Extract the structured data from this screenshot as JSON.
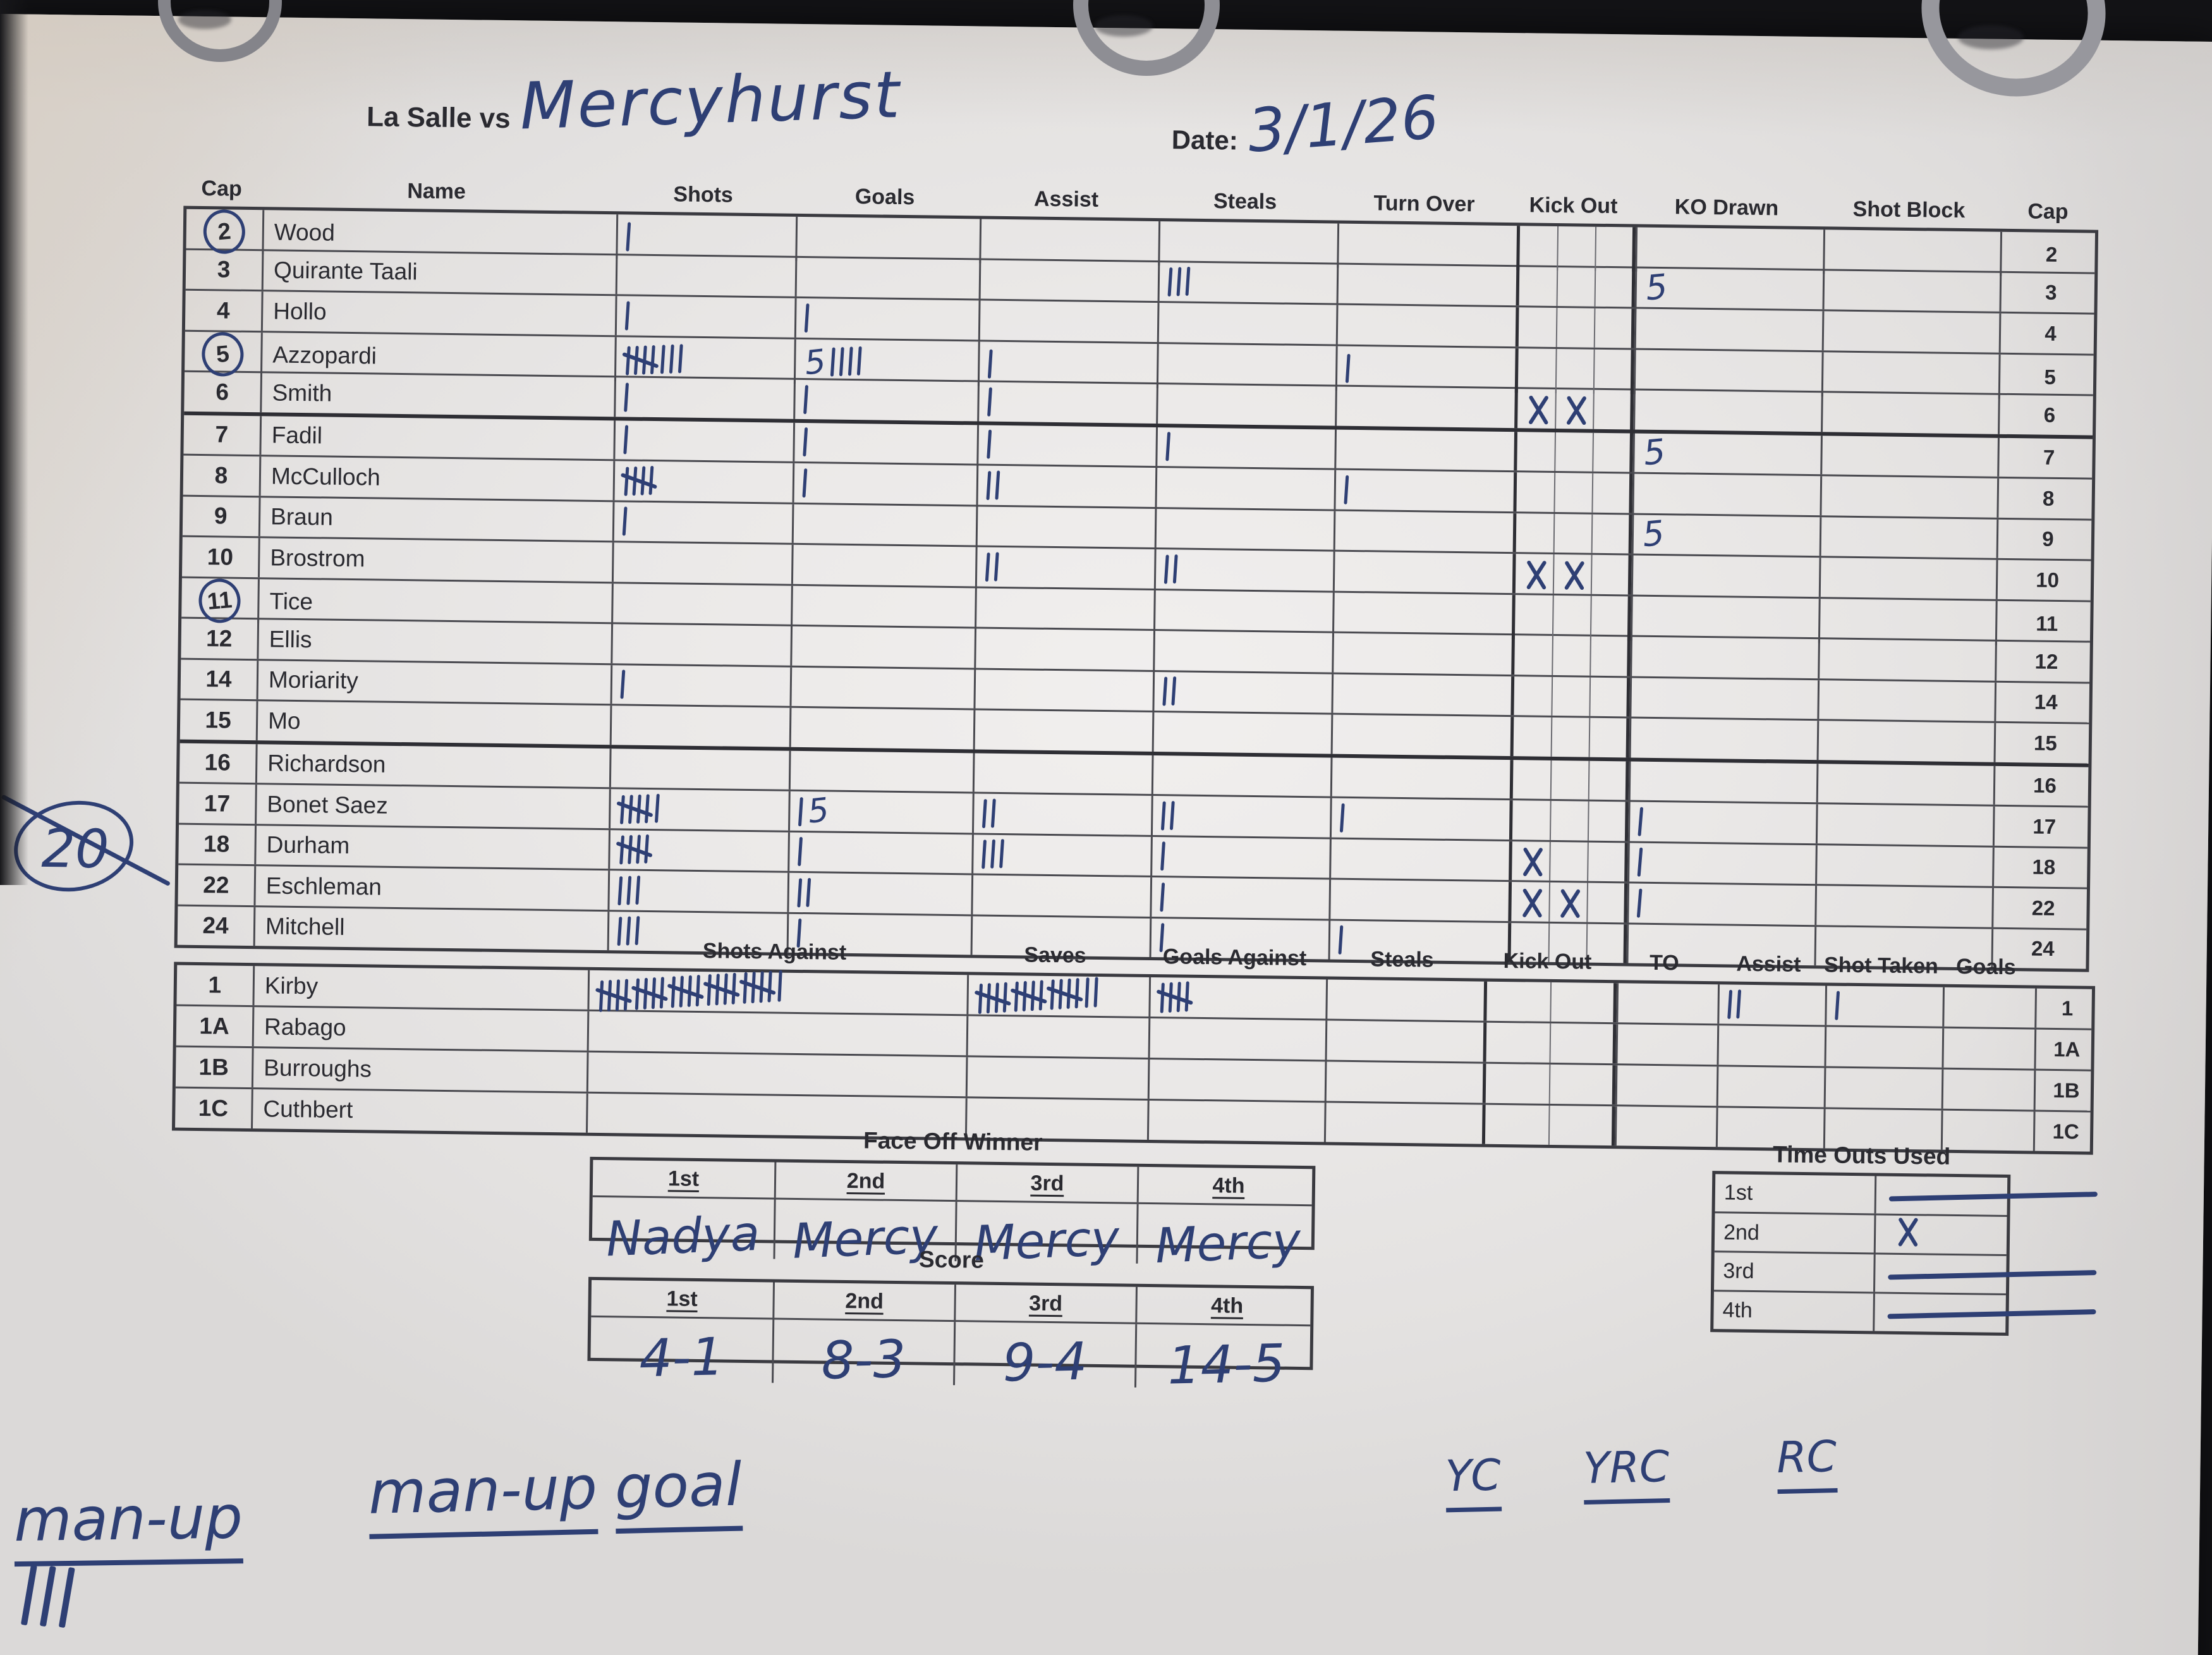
{
  "ink_color": "#2e3f74",
  "tally_legend": {
    "|": "single tally stroke",
    "F": "crossed five-tally bundle",
    "X": "x mark",
    "digit": "handwritten numeral",
    "-": "strike line"
  },
  "header": {
    "matchup_printed": "La Salle vs",
    "opponent_handwritten": "Mercyhurst",
    "date_label": "Date:",
    "date_value": "3/1/26"
  },
  "margin_note": {
    "value": "20",
    "style": "circled and crossed out"
  },
  "player_table": {
    "headers": [
      "Cap",
      "Name",
      "Shots",
      "Goals",
      "Assist",
      "Steals",
      "Turn Over",
      "Kick Out",
      "KO Drawn",
      "Shot Block",
      "Cap"
    ],
    "rows": [
      {
        "cap": "2",
        "circled": true,
        "name": "Wood",
        "shots": "|",
        "goals": "",
        "assist": "",
        "steals": "",
        "turn_over": "",
        "kick_out": "",
        "ko_drawn": "",
        "shot_block": ""
      },
      {
        "cap": "3",
        "circled": false,
        "name": "Quirante Taali",
        "shots": "",
        "goals": "",
        "assist": "",
        "steals": "|||",
        "turn_over": "",
        "kick_out": "",
        "ko_drawn": "5",
        "shot_block": ""
      },
      {
        "cap": "4",
        "circled": false,
        "name": "Hollo",
        "shots": "|",
        "goals": "|",
        "assist": "",
        "steals": "",
        "turn_over": "",
        "kick_out": "",
        "ko_drawn": "",
        "shot_block": ""
      },
      {
        "cap": "5",
        "circled": true,
        "name": "Azzopardi",
        "shots": "F|||",
        "goals": "5||||",
        "assist": "|",
        "steals": "",
        "turn_over": "|",
        "kick_out": "",
        "ko_drawn": "",
        "shot_block": ""
      },
      {
        "cap": "6",
        "circled": false,
        "name": "Smith",
        "shots": "|",
        "goals": "|",
        "assist": "|",
        "steals": "",
        "turn_over": "",
        "kick_out": "XX",
        "ko_drawn": "",
        "shot_block": ""
      },
      {
        "cap": "7",
        "circled": false,
        "name": "Fadil",
        "shots": "|",
        "goals": "|",
        "assist": "|",
        "steals": "|",
        "turn_over": "",
        "kick_out": "",
        "ko_drawn": "5",
        "shot_block": ""
      },
      {
        "cap": "8",
        "circled": false,
        "name": "McCulloch",
        "shots": "F",
        "goals": "|",
        "assist": "||",
        "steals": "",
        "turn_over": "|",
        "kick_out": "",
        "ko_drawn": "",
        "shot_block": ""
      },
      {
        "cap": "9",
        "circled": false,
        "name": "Braun",
        "shots": "|",
        "goals": "",
        "assist": "",
        "steals": "",
        "turn_over": "",
        "kick_out": "",
        "ko_drawn": "5",
        "shot_block": ""
      },
      {
        "cap": "10",
        "circled": false,
        "name": "Brostrom",
        "shots": "",
        "goals": "",
        "assist": "||",
        "steals": "||",
        "turn_over": "",
        "kick_out": "XX",
        "ko_drawn": "",
        "shot_block": ""
      },
      {
        "cap": "11",
        "circled": true,
        "name": "Tice",
        "shots": "",
        "goals": "",
        "assist": "",
        "steals": "",
        "turn_over": "",
        "kick_out": "",
        "ko_drawn": "",
        "shot_block": ""
      },
      {
        "cap": "12",
        "circled": false,
        "name": "Ellis",
        "shots": "",
        "goals": "",
        "assist": "",
        "steals": "",
        "turn_over": "",
        "kick_out": "",
        "ko_drawn": "",
        "shot_block": ""
      },
      {
        "cap": "14",
        "circled": false,
        "name": "Moriarity",
        "shots": "|",
        "goals": "",
        "assist": "",
        "steals": "||",
        "turn_over": "",
        "kick_out": "",
        "ko_drawn": "",
        "shot_block": ""
      },
      {
        "cap": "15",
        "circled": false,
        "name": "Mo",
        "shots": "",
        "goals": "",
        "assist": "",
        "steals": "",
        "turn_over": "",
        "kick_out": "",
        "ko_drawn": "",
        "shot_block": ""
      },
      {
        "cap": "16",
        "circled": false,
        "name": "Richardson",
        "shots": "",
        "goals": "",
        "assist": "",
        "steals": "",
        "turn_over": "",
        "kick_out": "",
        "ko_drawn": "",
        "shot_block": ""
      },
      {
        "cap": "17",
        "circled": false,
        "name": "Bonet Saez",
        "shots": "F|",
        "goals": "|5",
        "assist": "||",
        "steals": "||",
        "turn_over": "|",
        "kick_out": "",
        "ko_drawn": "|",
        "shot_block": ""
      },
      {
        "cap": "18",
        "circled": false,
        "name": "Durham",
        "shots": "F",
        "goals": "|",
        "assist": "|||",
        "steals": "|",
        "turn_over": "",
        "kick_out": "X",
        "ko_drawn": "|",
        "shot_block": ""
      },
      {
        "cap": "22",
        "circled": false,
        "name": "Eschleman",
        "shots": "|||",
        "goals": "||",
        "assist": "",
        "steals": "|",
        "turn_over": "",
        "kick_out": "XX",
        "ko_drawn": "|",
        "shot_block": ""
      },
      {
        "cap": "24",
        "circled": false,
        "name": "Mitchell",
        "shots": "|||",
        "goals": "|",
        "assist": "",
        "steals": "|",
        "turn_over": "|",
        "kick_out": "",
        "ko_drawn": "",
        "shot_block": ""
      }
    ]
  },
  "goalie_table": {
    "headers": [
      "Shots Against",
      "Saves",
      "Goals Against",
      "Steals",
      "Kick Out",
      "TO",
      "Assist",
      "Shot Taken",
      "Goals"
    ],
    "rows": [
      {
        "cap": "1",
        "name": "Kirby",
        "shots_against": "FFFFF|",
        "saves": "FFF||",
        "goals_against": "F",
        "steals": "",
        "kick_out": "",
        "to": "",
        "assist": "||",
        "shot_taken": "|",
        "goals": ""
      },
      {
        "cap": "1A",
        "name": "Rabago",
        "shots_against": "",
        "saves": "",
        "goals_against": "",
        "steals": "",
        "kick_out": "",
        "to": "",
        "assist": "",
        "shot_taken": "",
        "goals": ""
      },
      {
        "cap": "1B",
        "name": "Burroughs",
        "shots_against": "",
        "saves": "",
        "goals_against": "",
        "steals": "",
        "kick_out": "",
        "to": "",
        "assist": "",
        "shot_taken": "",
        "goals": ""
      },
      {
        "cap": "1C",
        "name": "Cuthbert",
        "shots_against": "",
        "saves": "",
        "goals_against": "",
        "steals": "",
        "kick_out": "",
        "to": "",
        "assist": "",
        "shot_taken": "",
        "goals": ""
      }
    ]
  },
  "face_off": {
    "title": "Face Off Winner",
    "columns": [
      "1st",
      "2nd",
      "3rd",
      "4th"
    ],
    "winners": [
      "Nadya",
      "Mercy",
      "Mercy",
      "Mercy"
    ]
  },
  "score": {
    "title": "Score",
    "columns": [
      "1st",
      "2nd",
      "3rd",
      "4th"
    ],
    "values": [
      "4-1",
      "8-3",
      "9-4",
      "14-5"
    ]
  },
  "time_outs": {
    "title": "Time Outs Used",
    "rows": [
      {
        "period": "1st",
        "mark": "-"
      },
      {
        "period": "2nd",
        "mark": "X"
      },
      {
        "period": "3rd",
        "mark": "-"
      },
      {
        "period": "4th",
        "mark": "-"
      }
    ]
  },
  "notes": {
    "man_up_label": "man-up",
    "man_up_tally": "|||",
    "man_up_goal_label": "man-up goal",
    "cards": [
      "YC",
      "YRC",
      "RC"
    ]
  }
}
